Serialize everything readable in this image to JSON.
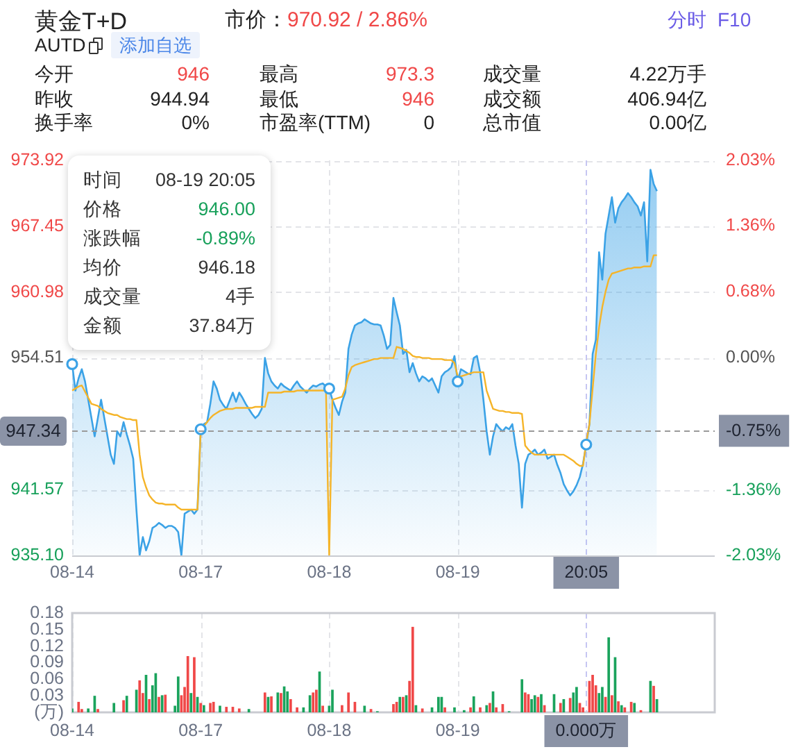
{
  "chart_data": [
    {
      "type": "other",
      "title": "黄金T+D",
      "subtitle": "市价：970.92 / 2.86%",
      "annotations": [
        "AUTD",
        "添加自选",
        "分时",
        "F10",
        "今开",
        "946",
        "最高",
        "973.3",
        "成交量",
        "4.22万手",
        "昨收",
        "944.94",
        "最低",
        "946",
        "成交额",
        "406.94亿",
        "换手率",
        "0%",
        "市盈率(TTM)",
        "0",
        "总市值",
        "0.00亿"
      ]
    },
    {
      "type": "area",
      "categories": [
        "08-14",
        null,
        null,
        null,
        null,
        null,
        null,
        null,
        null,
        null,
        null,
        null,
        null,
        null,
        null,
        null,
        null,
        null,
        null,
        null,
        null,
        null,
        null,
        null,
        null,
        null,
        null,
        null,
        null,
        null,
        null,
        null,
        null,
        null,
        null,
        null,
        null,
        null,
        null,
        null,
        "08-17",
        null,
        null,
        null,
        null,
        null,
        null,
        null,
        null,
        null,
        null,
        null,
        null,
        null,
        null,
        null,
        null,
        null,
        null,
        null,
        null,
        null,
        null,
        null,
        null,
        null,
        null,
        null,
        null,
        null,
        null,
        null,
        null,
        null,
        null,
        null,
        null,
        null,
        null,
        null,
        "08-18",
        null,
        null,
        null,
        null,
        null,
        null,
        null,
        null,
        null,
        null,
        null,
        null,
        null,
        null,
        null,
        null,
        null,
        null,
        null,
        null,
        null,
        null,
        null,
        null,
        null,
        null,
        null,
        null,
        null,
        null,
        null,
        null,
        null,
        null,
        null,
        null,
        null,
        null,
        null,
        "08-19",
        null,
        null,
        null,
        null,
        null,
        null,
        null,
        null,
        null,
        null,
        null,
        null,
        null,
        null,
        null,
        null,
        null,
        null,
        null,
        null,
        null,
        null,
        null,
        null,
        null,
        null,
        null,
        null,
        null,
        null,
        null,
        null,
        null,
        null,
        null,
        null,
        null,
        null,
        null,
        "20:05",
        null,
        null,
        null,
        null,
        null,
        null,
        null,
        null,
        null,
        null,
        null,
        null,
        null,
        null,
        null,
        null,
        null,
        null,
        null,
        null,
        null,
        null,
        null,
        null,
        null,
        null,
        null,
        null,
        null,
        null,
        null,
        null,
        null,
        null,
        null,
        null,
        null,
        null,
        null,
        null
      ],
      "series": [
        {
          "type": "area",
          "color": "#3ba2e6",
          "values": [
            953.9,
            951.3,
            952.5,
            953.4,
            952.2,
            950.4,
            948.6,
            946.8,
            948.6,
            950.4,
            948.6,
            946.8,
            945.0,
            944.1,
            947.3,
            946.8,
            948.2,
            947.0,
            945.9,
            944.6,
            939.6,
            935.1,
            936.9,
            935.6,
            936.5,
            937.8,
            938.0,
            938.3,
            938.1,
            937.8,
            938.0,
            938.0,
            937.8,
            937.4,
            935.1,
            939.2,
            939.4,
            939.6,
            939.2,
            939.6,
            947.5,
            948.0,
            948.2,
            950.0,
            952.2,
            951.5,
            950.4,
            949.9,
            949.5,
            950.3,
            951.1,
            950.2,
            951.1,
            950.6,
            950.0,
            949.5,
            949.0,
            948.6,
            948.9,
            949.5,
            954.5,
            953.0,
            952.2,
            951.8,
            951.5,
            952.0,
            951.7,
            951.5,
            951.3,
            951.8,
            952.2,
            951.7,
            951.4,
            951.1,
            951.5,
            951.8,
            951.7,
            951.9,
            952.0,
            951.7,
            951.5,
            950.4,
            949.6,
            948.9,
            950.2,
            951.1,
            955.4,
            956.8,
            957.7,
            957.9,
            958.0,
            958.3,
            958.1,
            957.9,
            957.8,
            957.8,
            957.7,
            956.7,
            955.4,
            955.8,
            960.4,
            959.0,
            957.7,
            954.9,
            955.3,
            953.1,
            954.0,
            953.0,
            952.2,
            952.7,
            952.5,
            952.2,
            952.5,
            951.8,
            951.1,
            952.7,
            953.1,
            953.3,
            953.6,
            954.7,
            952.2,
            953.4,
            953.2,
            953.0,
            952.9,
            954.5,
            954.7,
            953.1,
            950.4,
            947.3,
            945.0,
            946.8,
            948.0,
            947.6,
            947.3,
            947.7,
            947.5,
            948.0,
            945.9,
            944.1,
            939.8,
            944.1,
            945.0,
            945.2,
            945.5,
            945.0,
            945.2,
            945.5,
            944.6,
            944.8,
            945.0,
            944.0,
            943.2,
            942.1,
            941.5,
            941.0,
            941.4,
            942.0,
            942.8,
            944.1,
            946.0,
            948.0,
            954.9,
            956.3,
            964.9,
            962.2,
            966.7,
            968.5,
            970.3,
            967.8,
            969.2,
            969.8,
            970.2,
            970.7,
            970.3,
            969.8,
            969.4,
            968.5,
            969.8,
            964.0,
            973.0,
            971.6,
            970.9,
            null,
            null,
            null,
            null,
            null,
            null,
            null,
            null,
            null,
            null,
            null,
            null,
            null,
            null,
            null,
            null,
            null,
            null
          ]
        },
        {
          "type": "line",
          "color": "#f5b428",
          "values": [
            951.3,
            951.5,
            951.7,
            951.8,
            951.2,
            950.6,
            950.0,
            949.9,
            949.8,
            949.5,
            949.3,
            949.1,
            949.0,
            948.9,
            948.9,
            948.7,
            948.6,
            948.5,
            948.5,
            948.4,
            948.4,
            945.0,
            942.8,
            941.8,
            941.0,
            940.6,
            940.3,
            940.2,
            940.2,
            940.1,
            940.1,
            940.1,
            940.1,
            939.8,
            939.6,
            939.6,
            939.6,
            939.6,
            939.6,
            939.6,
            947.3,
            947.8,
            948.2,
            948.6,
            948.9,
            949.1,
            949.3,
            949.4,
            949.5,
            949.5,
            949.5,
            949.6,
            949.6,
            949.6,
            949.6,
            949.6,
            949.6,
            949.7,
            949.7,
            949.7,
            949.7,
            951.1,
            951.1,
            951.1,
            951.1,
            951.1,
            951.2,
            951.2,
            951.2,
            951.2,
            951.3,
            951.3,
            951.3,
            951.3,
            951.3,
            951.3,
            951.3,
            951.3,
            951.3,
            951.3,
            935.1,
            950.4,
            950.5,
            950.6,
            950.7,
            951.5,
            952.8,
            953.6,
            953.8,
            953.9,
            954.0,
            954.1,
            954.2,
            954.3,
            954.4,
            954.4,
            954.5,
            954.5,
            954.5,
            954.5,
            954.5,
            955.6,
            955.5,
            955.4,
            955.2,
            955.0,
            954.7,
            954.6,
            954.6,
            954.5,
            954.5,
            954.5,
            954.4,
            954.4,
            954.4,
            954.4,
            954.3,
            954.3,
            954.3,
            954.0,
            952.7,
            952.7,
            952.8,
            952.9,
            953.0,
            953.1,
            953.1,
            953.1,
            953.1,
            951.3,
            950.4,
            949.5,
            949.4,
            949.3,
            949.3,
            949.2,
            949.2,
            949.1,
            949.1,
            949.1,
            949.0,
            945.9,
            945.5,
            945.2,
            945.0,
            945.0,
            945.0,
            945.0,
            945.0,
            945.0,
            945.0,
            945.0,
            945.0,
            945.0,
            944.8,
            944.6,
            944.4,
            944.1,
            943.9,
            943.9,
            946.2,
            948.0,
            951.5,
            954.9,
            957.5,
            959.5,
            961.0,
            962.2,
            962.8,
            962.9,
            963.0,
            963.1,
            963.2,
            963.3,
            963.3,
            963.4,
            963.4,
            963.4,
            963.5,
            963.5,
            963.5,
            964.6,
            964.6,
            null,
            null,
            null,
            null,
            null,
            null,
            null,
            null,
            null,
            null,
            null,
            null,
            null,
            null,
            null,
            null,
            null,
            null
          ]
        },
        {
          "type": "scatter",
          "color": "#3ba2e6",
          "marker": "circle",
          "values": [
            953.9,
            null,
            null,
            null,
            null,
            null,
            null,
            null,
            null,
            null,
            null,
            null,
            null,
            null,
            null,
            null,
            null,
            null,
            null,
            null,
            null,
            null,
            null,
            null,
            null,
            null,
            null,
            null,
            null,
            null,
            null,
            null,
            null,
            null,
            null,
            null,
            null,
            null,
            null,
            null,
            947.5,
            null,
            null,
            null,
            null,
            null,
            null,
            null,
            null,
            null,
            null,
            null,
            null,
            null,
            null,
            null,
            null,
            null,
            null,
            null,
            null,
            null,
            null,
            null,
            null,
            null,
            null,
            null,
            null,
            null,
            null,
            null,
            null,
            null,
            null,
            null,
            null,
            null,
            null,
            null,
            951.5,
            null,
            null,
            null,
            null,
            null,
            null,
            null,
            null,
            null,
            null,
            null,
            null,
            null,
            null,
            null,
            null,
            null,
            null,
            null,
            null,
            null,
            null,
            null,
            null,
            null,
            null,
            null,
            null,
            null,
            null,
            null,
            null,
            null,
            null,
            null,
            null,
            null,
            null,
            null,
            952.2,
            null,
            null,
            null,
            null,
            null,
            null,
            null,
            null,
            null,
            null,
            null,
            null,
            null,
            null,
            null,
            null,
            null,
            null,
            null,
            null,
            null,
            null,
            null,
            null,
            null,
            null,
            null,
            null,
            null,
            null,
            null,
            null,
            null,
            null,
            null,
            null,
            null,
            null,
            null,
            946.0,
            null,
            null,
            null,
            null,
            null,
            null,
            null,
            null,
            null,
            null,
            null,
            null,
            null,
            null,
            null,
            null,
            null,
            null,
            null,
            null,
            null,
            null,
            null,
            null,
            null,
            null,
            null,
            null,
            null,
            null,
            null,
            null,
            null,
            null,
            null,
            null,
            null,
            null,
            null,
            null
          ]
        }
      ],
      "ylim": [
        935.1,
        973.92
      ],
      "yticks": [
        {
          "value": 935.1,
          "label": "935.10"
        },
        941.57,
        954.51,
        960.98,
        967.45,
        973.92
      ],
      "y2lim": [
        -2.03,
        2.03
      ],
      "y2ticks": [
        {
          "value": -2.03,
          "label": "-2.03%"
        },
        {
          "value": -1.36,
          "label": "-1.36%"
        },
        {
          "value": -0.75,
          "label": "-0.75%"
        },
        {
          "value": 0,
          "label": "0.00%"
        },
        {
          "value": 0.68,
          "label": "0.68%"
        },
        {
          "value": 1.36,
          "label": "1.36%"
        },
        {
          "value": 2.03,
          "label": "2.03%"
        }
      ],
      "grid": true,
      "ref_lines": [
        {
          "axis": "y",
          "value": 947.34,
          "label": "947.34",
          "color": "#9a9a9a",
          "line_style": "dashed"
        }
      ],
      "annotations": [
        "时间",
        "08-19 20:05",
        "价格",
        "946.00",
        "涨跌幅",
        "-0.89%",
        "均价",
        "946.18",
        "成交量",
        "4手",
        "金额",
        "37.84万"
      ]
    },
    {
      "type": "bar",
      "categories": [
        "08-14",
        null,
        null,
        null,
        null,
        null,
        null,
        null,
        null,
        null,
        null,
        null,
        null,
        null,
        null,
        null,
        null,
        null,
        null,
        null,
        null,
        null,
        null,
        null,
        null,
        null,
        null,
        null,
        null,
        null,
        null,
        null,
        null,
        null,
        null,
        null,
        null,
        null,
        null,
        null,
        "08-17",
        null,
        null,
        null,
        null,
        null,
        null,
        null,
        null,
        null,
        null,
        null,
        null,
        null,
        null,
        null,
        null,
        null,
        null,
        null,
        null,
        null,
        null,
        null,
        null,
        null,
        null,
        null,
        null,
        null,
        null,
        null,
        null,
        null,
        null,
        null,
        null,
        null,
        null,
        null,
        "08-18",
        null,
        null,
        null,
        null,
        null,
        null,
        null,
        null,
        null,
        null,
        null,
        null,
        null,
        null,
        null,
        null,
        null,
        null,
        null,
        null,
        null,
        null,
        null,
        null,
        null,
        null,
        null,
        null,
        null,
        null,
        null,
        null,
        null,
        null,
        null,
        null,
        null,
        null,
        null,
        "08-19",
        null,
        null,
        null,
        null,
        null,
        null,
        null,
        null,
        null,
        null,
        null,
        null,
        null,
        null,
        null,
        null,
        null,
        null,
        null,
        null,
        null,
        null,
        null,
        null,
        null,
        null,
        null,
        null,
        null,
        null,
        null,
        null,
        null,
        null,
        null,
        null,
        null,
        null,
        null,
        "0.000万",
        null,
        null,
        null,
        null,
        null,
        null,
        null,
        null,
        null,
        null,
        null,
        null,
        null,
        null,
        null,
        null,
        null,
        null,
        null,
        null,
        null,
        null,
        null,
        null,
        null,
        null,
        null,
        null,
        null,
        null,
        null,
        null,
        null,
        null,
        null,
        null,
        null,
        null,
        null,
        null
      ],
      "series": [
        {
          "type": "bar",
          "color": "#f04848",
          "values": [
            null,
            null,
            0.019,
            0.006,
            null,
            null,
            null,
            null,
            0.006,
            null,
            null,
            null,
            null,
            null,
            null,
            null,
            0.022,
            null,
            null,
            null,
            null,
            0.058,
            0.035,
            null,
            0.024,
            null,
            null,
            0.028,
            null,
            0.032,
            null,
            null,
            null,
            null,
            0.031,
            0.046,
            0.102,
            null,
            0.1,
            null,
            0.017,
            null,
            null,
            0.017,
            0.019,
            null,
            null,
            null,
            0.01,
            null,
            0.01,
            null,
            0.007,
            null,
            null,
            null,
            null,
            null,
            null,
            null,
            0.036,
            null,
            0.029,
            null,
            null,
            0.035,
            null,
            null,
            0.024,
            null,
            0.009,
            null,
            null,
            null,
            null,
            0.036,
            0.041,
            null,
            0.012,
            null,
            null,
            null,
            null,
            null,
            0.013,
            null,
            0.036,
            null,
            0.019,
            null,
            null,
            null,
            null,
            0.006,
            null,
            null,
            null,
            null,
            null,
            null,
            0.015,
            0.019,
            null,
            0.028,
            null,
            0.057,
            0.155,
            null,
            null,
            0.007,
            null,
            null,
            null,
            null,
            null,
            null,
            0.009,
            null,
            null,
            null,
            null,
            null,
            null,
            null,
            0.009,
            null,
            null,
            0.009,
            null,
            null,
            0.017,
            null,
            0.009,
            null,
            0.015,
            null,
            null,
            null,
            null,
            null,
            null,
            0.036,
            0.033,
            null,
            null,
            0.028,
            null,
            0.013,
            null,
            null,
            null,
            null,
            0.017,
            null,
            null,
            0.026,
            null,
            null,
            0.017,
            0.009,
            null,
            0.057,
            0.068,
            0.049,
            null,
            null,
            0.028,
            null,
            0.031,
            null,
            0.02,
            null,
            0.009,
            null,
            0.019,
            null,
            null,
            0.004,
            null,
            null,
            null,
            0.048,
            null,
            null,
            null,
            null,
            null,
            null,
            null,
            null,
            null,
            null,
            null,
            null,
            null,
            null,
            null,
            null,
            null,
            null,
            null
          ]
        },
        {
          "type": "bar",
          "color": "#1aa35c",
          "values": [
            0.007,
            null,
            null,
            null,
            null,
            0.007,
            null,
            0.03,
            null,
            null,
            null,
            null,
            null,
            0.017,
            null,
            null,
            null,
            0.03,
            null,
            null,
            0.041,
            null,
            null,
            0.068,
            null,
            0.049,
            0.071,
            null,
            0.031,
            null,
            null,
            null,
            0.012,
            0.065,
            null,
            null,
            null,
            0.035,
            null,
            0.028,
            null,
            0.013,
            null,
            null,
            null,
            null,
            0.012,
            null,
            null,
            null,
            null,
            null,
            null,
            null,
            null,
            0.006,
            null,
            null,
            null,
            null,
            null,
            0.028,
            null,
            null,
            0.036,
            null,
            0.047,
            0.038,
            null,
            null,
            null,
            null,
            0.009,
            null,
            0.031,
            null,
            null,
            0.074,
            null,
            null,
            0.012,
            0.041,
            null,
            null,
            null,
            null,
            null,
            null,
            null,
            null,
            null,
            0.012,
            null,
            null,
            null,
            0.002,
            null,
            null,
            null,
            null,
            null,
            null,
            0.028,
            null,
            0.031,
            null,
            null,
            0.013,
            null,
            null,
            null,
            null,
            0.009,
            null,
            0.028,
            0.028,
            null,
            null,
            null,
            0.009,
            null,
            null,
            0.004,
            null,
            null,
            0.029,
            null,
            null,
            null,
            0.013,
            null,
            0.038,
            null,
            null,
            null,
            null,
            0.002,
            null,
            null,
            null,
            0.06,
            null,
            null,
            0.024,
            0.031,
            null,
            0.033,
            null,
            null,
            null,
            0.033,
            null,
            null,
            0.024,
            null,
            null,
            0.036,
            0.046,
            null,
            null,
            null,
            null,
            null,
            null,
            0.035,
            0.046,
            null,
            0.136,
            null,
            0.1,
            null,
            0.013,
            null,
            null,
            null,
            0.017,
            null,
            null,
            null,
            null,
            0.057,
            null,
            0.024,
            null,
            null,
            null,
            null,
            null,
            null,
            null,
            null,
            null,
            null,
            null,
            null,
            null,
            null,
            null,
            null,
            null,
            null
          ]
        }
      ],
      "ylim": [
        0,
        0.18
      ],
      "yticks": [
        {
          "value": 0,
          "label": "(万)"
        },
        0.03,
        0.06,
        0.09,
        0.12,
        0.15,
        0.18
      ],
      "grid": "x"
    }
  ]
}
